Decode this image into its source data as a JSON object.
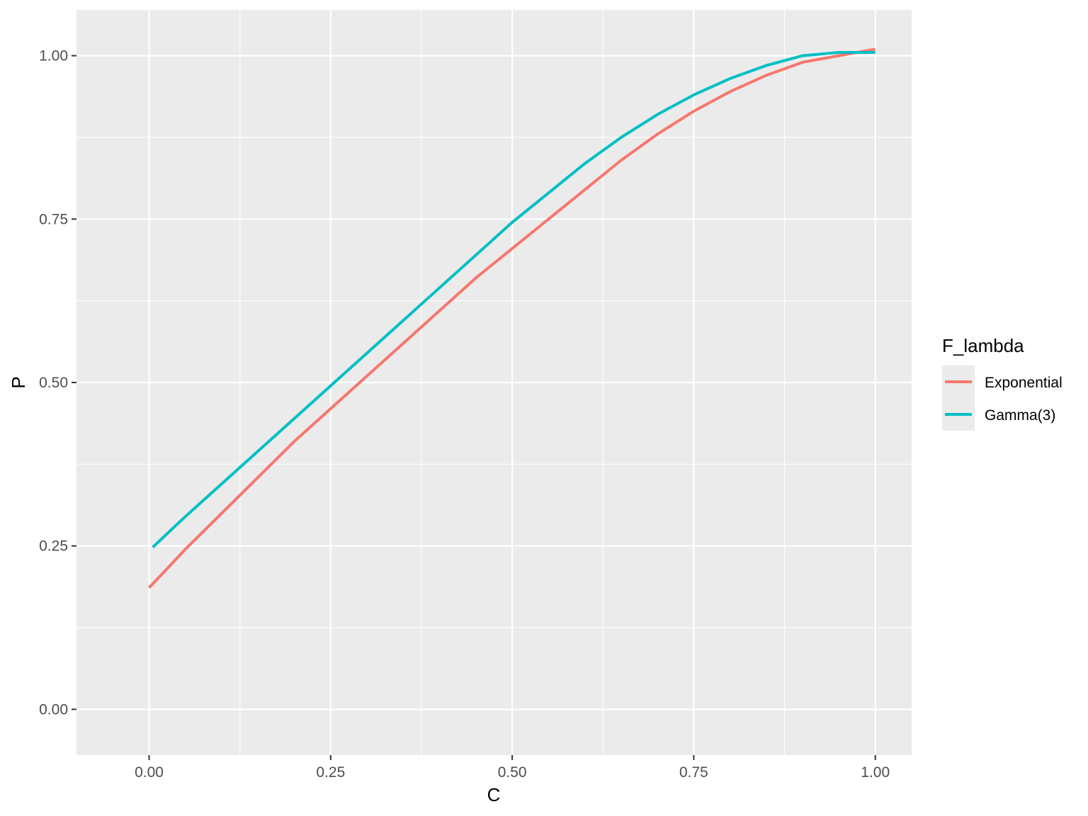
{
  "chart_data": {
    "type": "line",
    "title": "",
    "xlabel": "C",
    "ylabel": "P",
    "xlim": [
      -0.1,
      1.05
    ],
    "ylim": [
      -0.07,
      1.07
    ],
    "xticks": [
      0.0,
      0.25,
      0.5,
      0.75,
      1.0
    ],
    "xtick_labels": [
      "0.00",
      "0.25",
      "0.50",
      "0.75",
      "1.00"
    ],
    "yticks": [
      0.0,
      0.25,
      0.5,
      0.75,
      1.0
    ],
    "ytick_labels": [
      "0.00",
      "0.25",
      "0.50",
      "0.75",
      "1.00"
    ],
    "grid": true,
    "legend": {
      "title": "F_lambda",
      "position": "right"
    },
    "series": [
      {
        "name": "Exponential",
        "color": "#F8766D",
        "x": [
          0.0,
          0.05,
          0.1,
          0.15,
          0.2,
          0.25,
          0.3,
          0.35,
          0.4,
          0.45,
          0.5,
          0.55,
          0.6,
          0.65,
          0.7,
          0.75,
          0.8,
          0.85,
          0.9,
          0.95,
          1.0
        ],
        "y": [
          0.186,
          0.245,
          0.3,
          0.355,
          0.41,
          0.46,
          0.51,
          0.56,
          0.61,
          0.66,
          0.705,
          0.75,
          0.795,
          0.84,
          0.88,
          0.915,
          0.945,
          0.97,
          0.99,
          1.0,
          1.01
        ]
      },
      {
        "name": "Gamma(3)",
        "color": "#00BFC4",
        "x": [
          0.005,
          0.05,
          0.1,
          0.15,
          0.2,
          0.25,
          0.3,
          0.35,
          0.4,
          0.45,
          0.5,
          0.55,
          0.6,
          0.65,
          0.7,
          0.75,
          0.8,
          0.85,
          0.9,
          0.95,
          1.0
        ],
        "y": [
          0.248,
          0.295,
          0.345,
          0.395,
          0.445,
          0.495,
          0.545,
          0.595,
          0.645,
          0.695,
          0.745,
          0.79,
          0.835,
          0.875,
          0.91,
          0.94,
          0.965,
          0.985,
          1.0,
          1.005,
          1.005
        ]
      }
    ]
  }
}
